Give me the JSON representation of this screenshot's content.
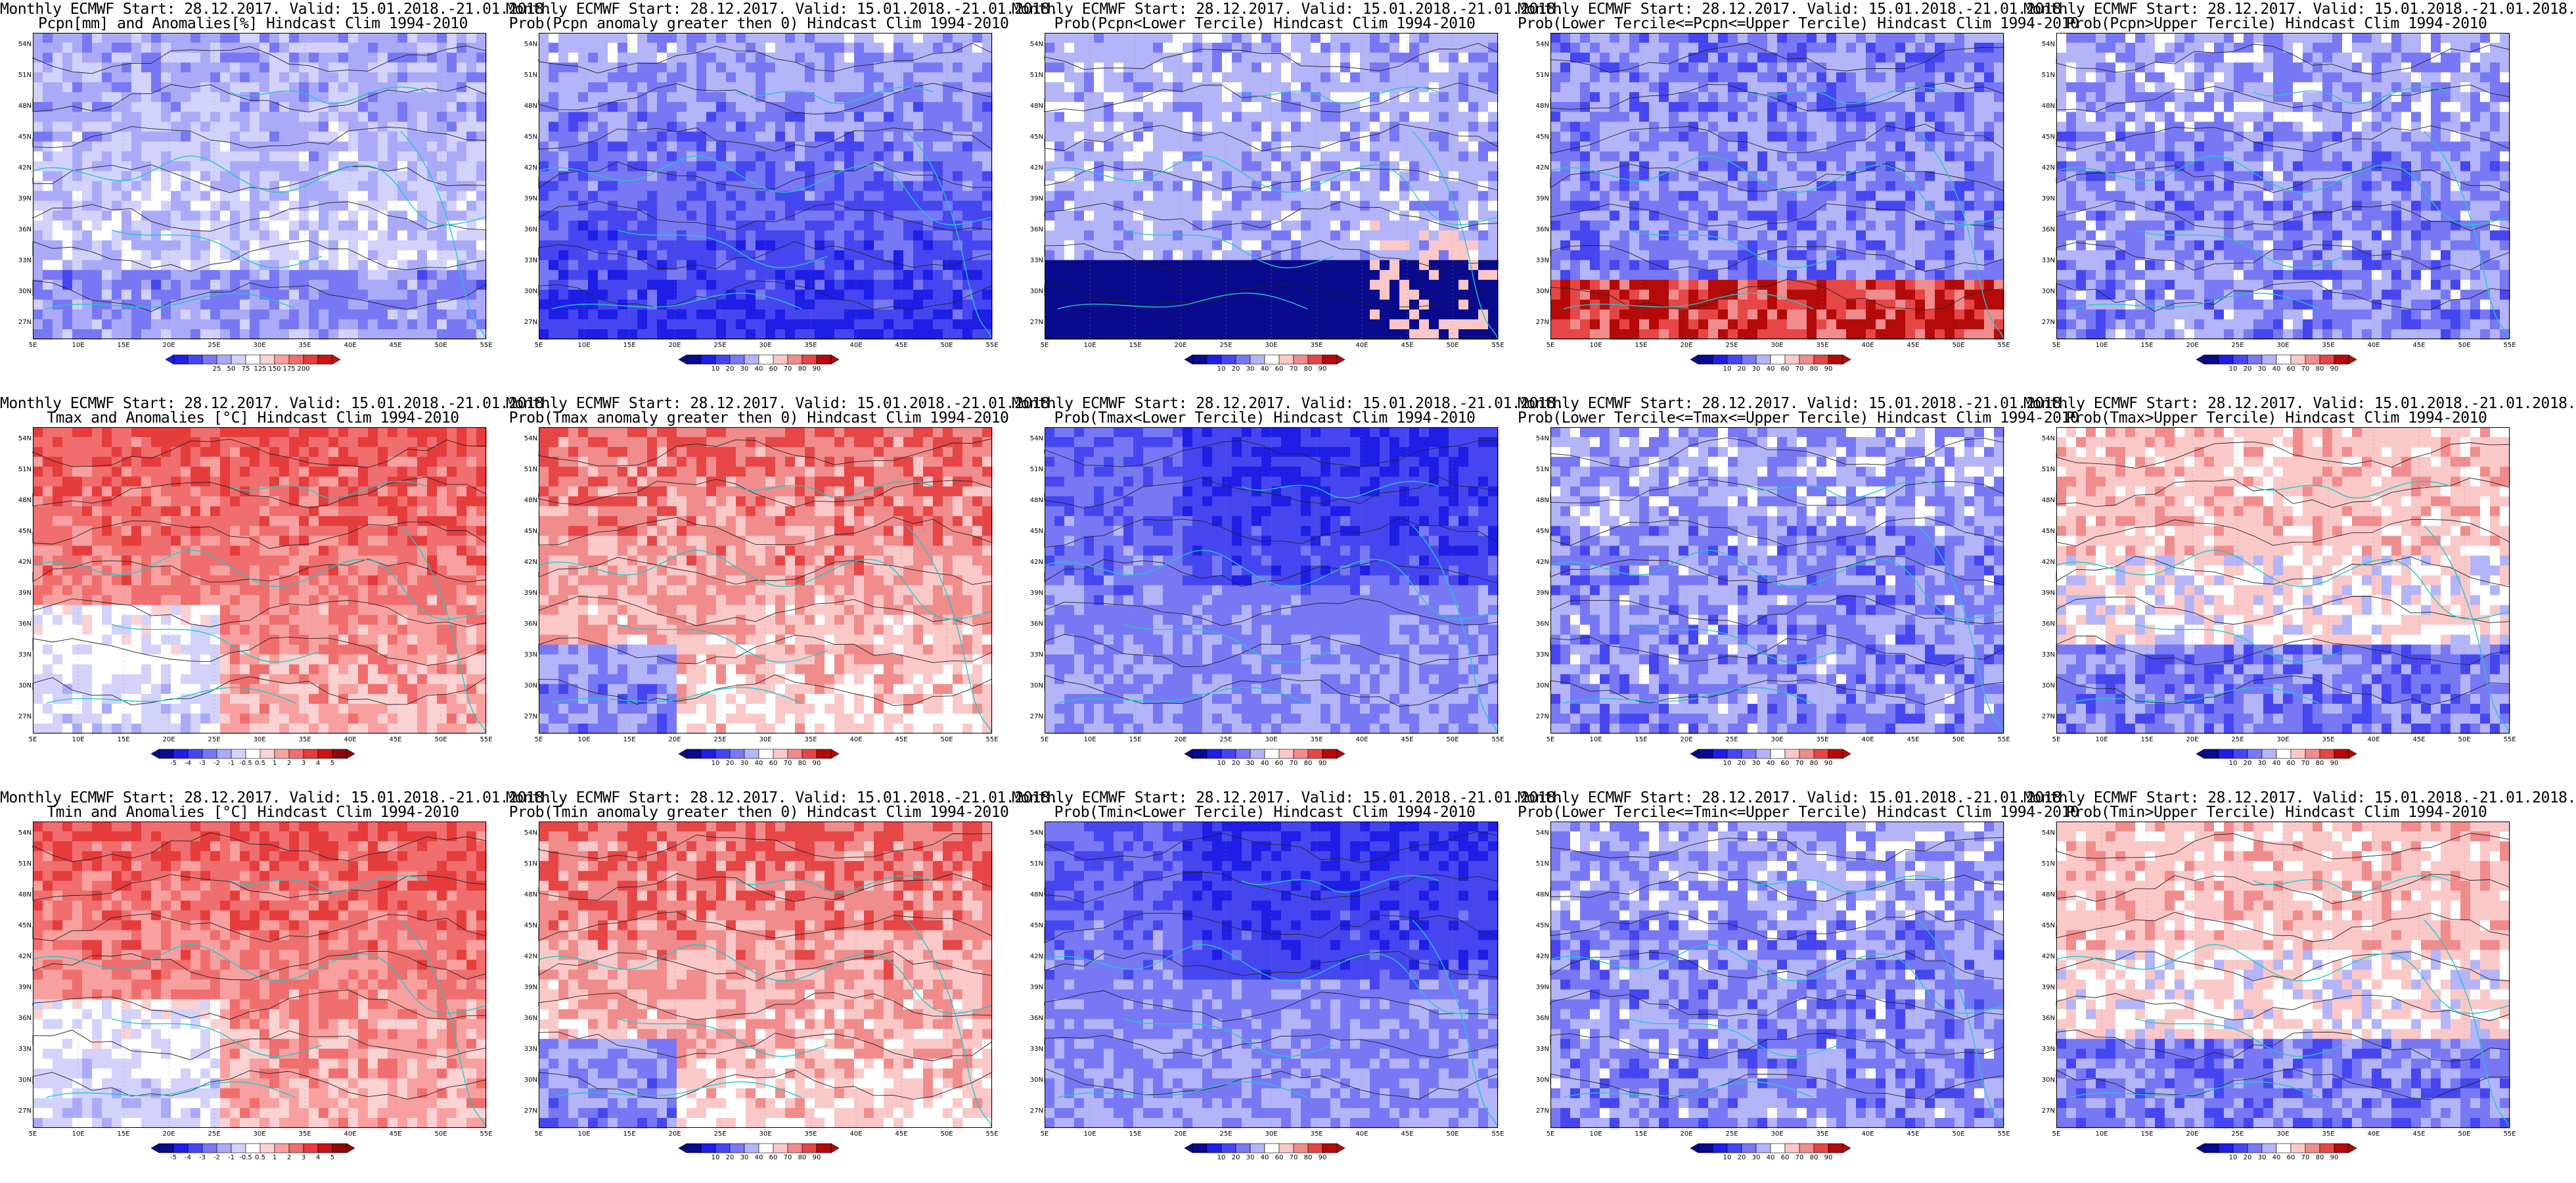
{
  "panels": [
    {
      "title1": "Monthly ECMWF Start: 28.12.2017. Valid: 15.01.2018.-21.01.2018.",
      "title2": "Pcpn[mm] and Anomalies[%] Hindcast Clim 1994-2010",
      "scheme": "precip_anom",
      "cbar_labels": [
        "25",
        "50",
        "75",
        "125",
        "150",
        "175",
        "200"
      ],
      "colors": [
        "#1e1ee6",
        "#4646f0",
        "#7878f5",
        "#aaaaf8",
        "#d2d2fb",
        "#ffffff",
        "#fbd2d2",
        "#f8a0a0",
        "#f06e6e",
        "#e63c3c",
        "#c81414"
      ]
    },
    {
      "title1": "Monthly ECMWF Start: 28.12.2017. Valid: 15.01.2018.-21.01.2018.",
      "title2": "Prob(Pcpn anomaly greater then 0) Hindcast Clim 1994-2010",
      "scheme": "blue_heavy",
      "cbar_labels": [
        "10",
        "20",
        "30",
        "40",
        "60",
        "70",
        "80",
        "90"
      ],
      "colors": [
        "#0a0a8c",
        "#1e1ee6",
        "#4646f0",
        "#7878f5",
        "#b4b4f8",
        "#ffffff",
        "#fbc8c8",
        "#f08c8c",
        "#e64646",
        "#b40a0a"
      ]
    },
    {
      "title1": "Monthly ECMWF Start: 28.12.2017. Valid: 15.01.2018.-21.01.2018.",
      "title2": "Prob(Pcpn<Lower Tercile) Hindcast Clim 1994-2010",
      "scheme": "light_blue",
      "cbar_labels": [
        "10",
        "20",
        "30",
        "40",
        "60",
        "70",
        "80",
        "90"
      ],
      "colors": [
        "#0a0a8c",
        "#1e1ee6",
        "#4646f0",
        "#7878f5",
        "#b4b4f8",
        "#ffffff",
        "#fbc8c8",
        "#f08c8c",
        "#e64646",
        "#b40a0a"
      ]
    },
    {
      "title1": "Monthly ECMWF Start: 28.12.2017. Valid: 15.01.2018.-21.01.2018.",
      "title2": "Prob(Lower Tercile<=Pcpn<=Upper Tercile) Hindcast Clim 1994-2010",
      "scheme": "blue_redsouth",
      "cbar_labels": [
        "10",
        "20",
        "30",
        "40",
        "60",
        "70",
        "80",
        "90"
      ],
      "colors": [
        "#0a0a8c",
        "#1e1ee6",
        "#4646f0",
        "#7878f5",
        "#b4b4f8",
        "#ffffff",
        "#fbc8c8",
        "#f08c8c",
        "#e64646",
        "#b40a0a"
      ]
    },
    {
      "title1": "Monthly ECMWF Start: 28.12.2017. Valid: 15.01.2018.-21.01.2018.",
      "title2": "Prob(Pcpn>Upper Tercile) Hindcast Clim 1994-2010",
      "scheme": "blue_mid",
      "cbar_labels": [
        "10",
        "20",
        "30",
        "40",
        "60",
        "70",
        "80",
        "90"
      ],
      "colors": [
        "#0a0a8c",
        "#1e1ee6",
        "#4646f0",
        "#7878f5",
        "#b4b4f8",
        "#ffffff",
        "#fbc8c8",
        "#f08c8c",
        "#e64646",
        "#b40a0a"
      ]
    },
    {
      "title1": "Monthly ECMWF Start: 28.12.2017. Valid: 15.01.2018.-21.01.2018.",
      "title2": "Tmax and Anomalies [°C] Hindcast Clim 1994-2010",
      "scheme": "red_warm",
      "cbar_labels": [
        "-5",
        "-4",
        "-3",
        "-2",
        "-1",
        "-0.5",
        "0.5",
        "1",
        "2",
        "3",
        "4",
        "5"
      ],
      "colors": [
        "#0a0a8c",
        "#1e1ee6",
        "#4646f0",
        "#7878f5",
        "#aaaaf8",
        "#d2d2fb",
        "#ffffff",
        "#fbd2d2",
        "#f8a0a0",
        "#f06e6e",
        "#e63c3c",
        "#c81414",
        "#8c0a0a"
      ]
    },
    {
      "title1": "Monthly ECMWF Start: 28.12.2017. Valid: 15.01.2018.-21.01.2018.",
      "title2": "Prob(Tmax anomaly greater then 0) Hindcast Clim 1994-2010",
      "scheme": "red_strong",
      "cbar_labels": [
        "10",
        "20",
        "30",
        "40",
        "60",
        "70",
        "80",
        "90"
      ],
      "colors": [
        "#0a0a8c",
        "#1e1ee6",
        "#4646f0",
        "#7878f5",
        "#b4b4f8",
        "#ffffff",
        "#fbc8c8",
        "#f08c8c",
        "#e64646",
        "#b40a0a"
      ]
    },
    {
      "title1": "Monthly ECMWF Start: 28.12.2017. Valid: 15.01.2018.-21.01.2018.",
      "title2": "Prob(Tmax<Lower Tercile) Hindcast Clim 1994-2010",
      "scheme": "blue_strong",
      "cbar_labels": [
        "10",
        "20",
        "30",
        "40",
        "60",
        "70",
        "80",
        "90"
      ],
      "colors": [
        "#0a0a8c",
        "#1e1ee6",
        "#4646f0",
        "#7878f5",
        "#b4b4f8",
        "#ffffff",
        "#fbc8c8",
        "#f08c8c",
        "#e64646",
        "#b40a0a"
      ]
    },
    {
      "title1": "Monthly ECMWF Start: 28.12.2017. Valid: 15.01.2018.-21.01.2018.",
      "title2": "Prob(Lower Tercile<=Tmax<=Upper Tercile) Hindcast Clim 1994-2010",
      "scheme": "blue_mid",
      "cbar_labels": [
        "10",
        "20",
        "30",
        "40",
        "60",
        "70",
        "80",
        "90"
      ],
      "colors": [
        "#0a0a8c",
        "#1e1ee6",
        "#4646f0",
        "#7878f5",
        "#b4b4f8",
        "#ffffff",
        "#fbc8c8",
        "#f08c8c",
        "#e64646",
        "#b40a0a"
      ]
    },
    {
      "title1": "Monthly ECMWF Start: 28.12.2017. Valid: 15.01.2018.-21.01.2018.",
      "title2": "Prob(Tmax>Upper Tercile) Hindcast Clim 1994-2010",
      "scheme": "mixed_red",
      "cbar_labels": [
        "10",
        "20",
        "30",
        "40",
        "60",
        "70",
        "80",
        "90"
      ],
      "colors": [
        "#0a0a8c",
        "#1e1ee6",
        "#4646f0",
        "#7878f5",
        "#b4b4f8",
        "#ffffff",
        "#fbc8c8",
        "#f08c8c",
        "#e64646",
        "#b40a0a"
      ]
    },
    {
      "title1": "Monthly ECMWF Start: 28.12.2017. Valid: 15.01.2018.-21.01.2018.",
      "title2": "Tmin and Anomalies [°C] Hindcast Clim 1994-2010",
      "scheme": "red_warm",
      "cbar_labels": [
        "-5",
        "-4",
        "-3",
        "-2",
        "-1",
        "-0.5",
        "0.5",
        "1",
        "2",
        "3",
        "4",
        "5"
      ],
      "colors": [
        "#0a0a8c",
        "#1e1ee6",
        "#4646f0",
        "#7878f5",
        "#aaaaf8",
        "#d2d2fb",
        "#ffffff",
        "#fbd2d2",
        "#f8a0a0",
        "#f06e6e",
        "#e63c3c",
        "#c81414",
        "#8c0a0a"
      ]
    },
    {
      "title1": "Monthly ECMWF Start: 28.12.2017. Valid: 15.01.2018.-21.01.2018.",
      "title2": "Prob(Tmin anomaly greater then 0) Hindcast Clim 1994-2010",
      "scheme": "red_strong",
      "cbar_labels": [
        "10",
        "20",
        "30",
        "40",
        "60",
        "70",
        "80",
        "90"
      ],
      "colors": [
        "#0a0a8c",
        "#1e1ee6",
        "#4646f0",
        "#7878f5",
        "#b4b4f8",
        "#ffffff",
        "#fbc8c8",
        "#f08c8c",
        "#e64646",
        "#b40a0a"
      ]
    },
    {
      "title1": "Monthly ECMWF Start: 28.12.2017. Valid: 15.01.2018.-21.01.2018.",
      "title2": "Prob(Tmin<Lower Tercile) Hindcast Clim 1994-2010",
      "scheme": "blue_strong",
      "cbar_labels": [
        "10",
        "20",
        "30",
        "40",
        "60",
        "70",
        "80",
        "90"
      ],
      "colors": [
        "#0a0a8c",
        "#1e1ee6",
        "#4646f0",
        "#7878f5",
        "#b4b4f8",
        "#ffffff",
        "#fbc8c8",
        "#f08c8c",
        "#e64646",
        "#b40a0a"
      ]
    },
    {
      "title1": "Monthly ECMWF Start: 28.12.2017. Valid: 15.01.2018.-21.01.2018.",
      "title2": "Prob(Lower Tercile<=Tmin<=Upper Tercile) Hindcast Clim 1994-2010",
      "scheme": "blue_mid",
      "cbar_labels": [
        "10",
        "20",
        "30",
        "40",
        "60",
        "70",
        "80",
        "90"
      ],
      "colors": [
        "#0a0a8c",
        "#1e1ee6",
        "#4646f0",
        "#7878f5",
        "#b4b4f8",
        "#ffffff",
        "#fbc8c8",
        "#f08c8c",
        "#e64646",
        "#b40a0a"
      ]
    },
    {
      "title1": "Monthly ECMWF Start: 28.12.2017. Valid: 15.01.2018.-21.01.2018.",
      "title2": "Prob(Tmin>Upper Tercile) Hindcast Clim 1994-2010",
      "scheme": "mixed_red",
      "cbar_labels": [
        "10",
        "20",
        "30",
        "40",
        "60",
        "70",
        "80",
        "90"
      ],
      "colors": [
        "#0a0a8c",
        "#1e1ee6",
        "#4646f0",
        "#7878f5",
        "#b4b4f8",
        "#ffffff",
        "#fbc8c8",
        "#f08c8c",
        "#e64646",
        "#b40a0a"
      ]
    }
  ],
  "lat_labels": [
    "54N",
    "51N",
    "48N",
    "45N",
    "42N",
    "39N",
    "36N",
    "33N",
    "30N",
    "27N"
  ],
  "lon_labels": [
    "5E",
    "10E",
    "15E",
    "20E",
    "25E",
    "30E",
    "35E",
    "40E",
    "45E",
    "50E",
    "55E"
  ],
  "coastline_color": "#20c8c8"
}
